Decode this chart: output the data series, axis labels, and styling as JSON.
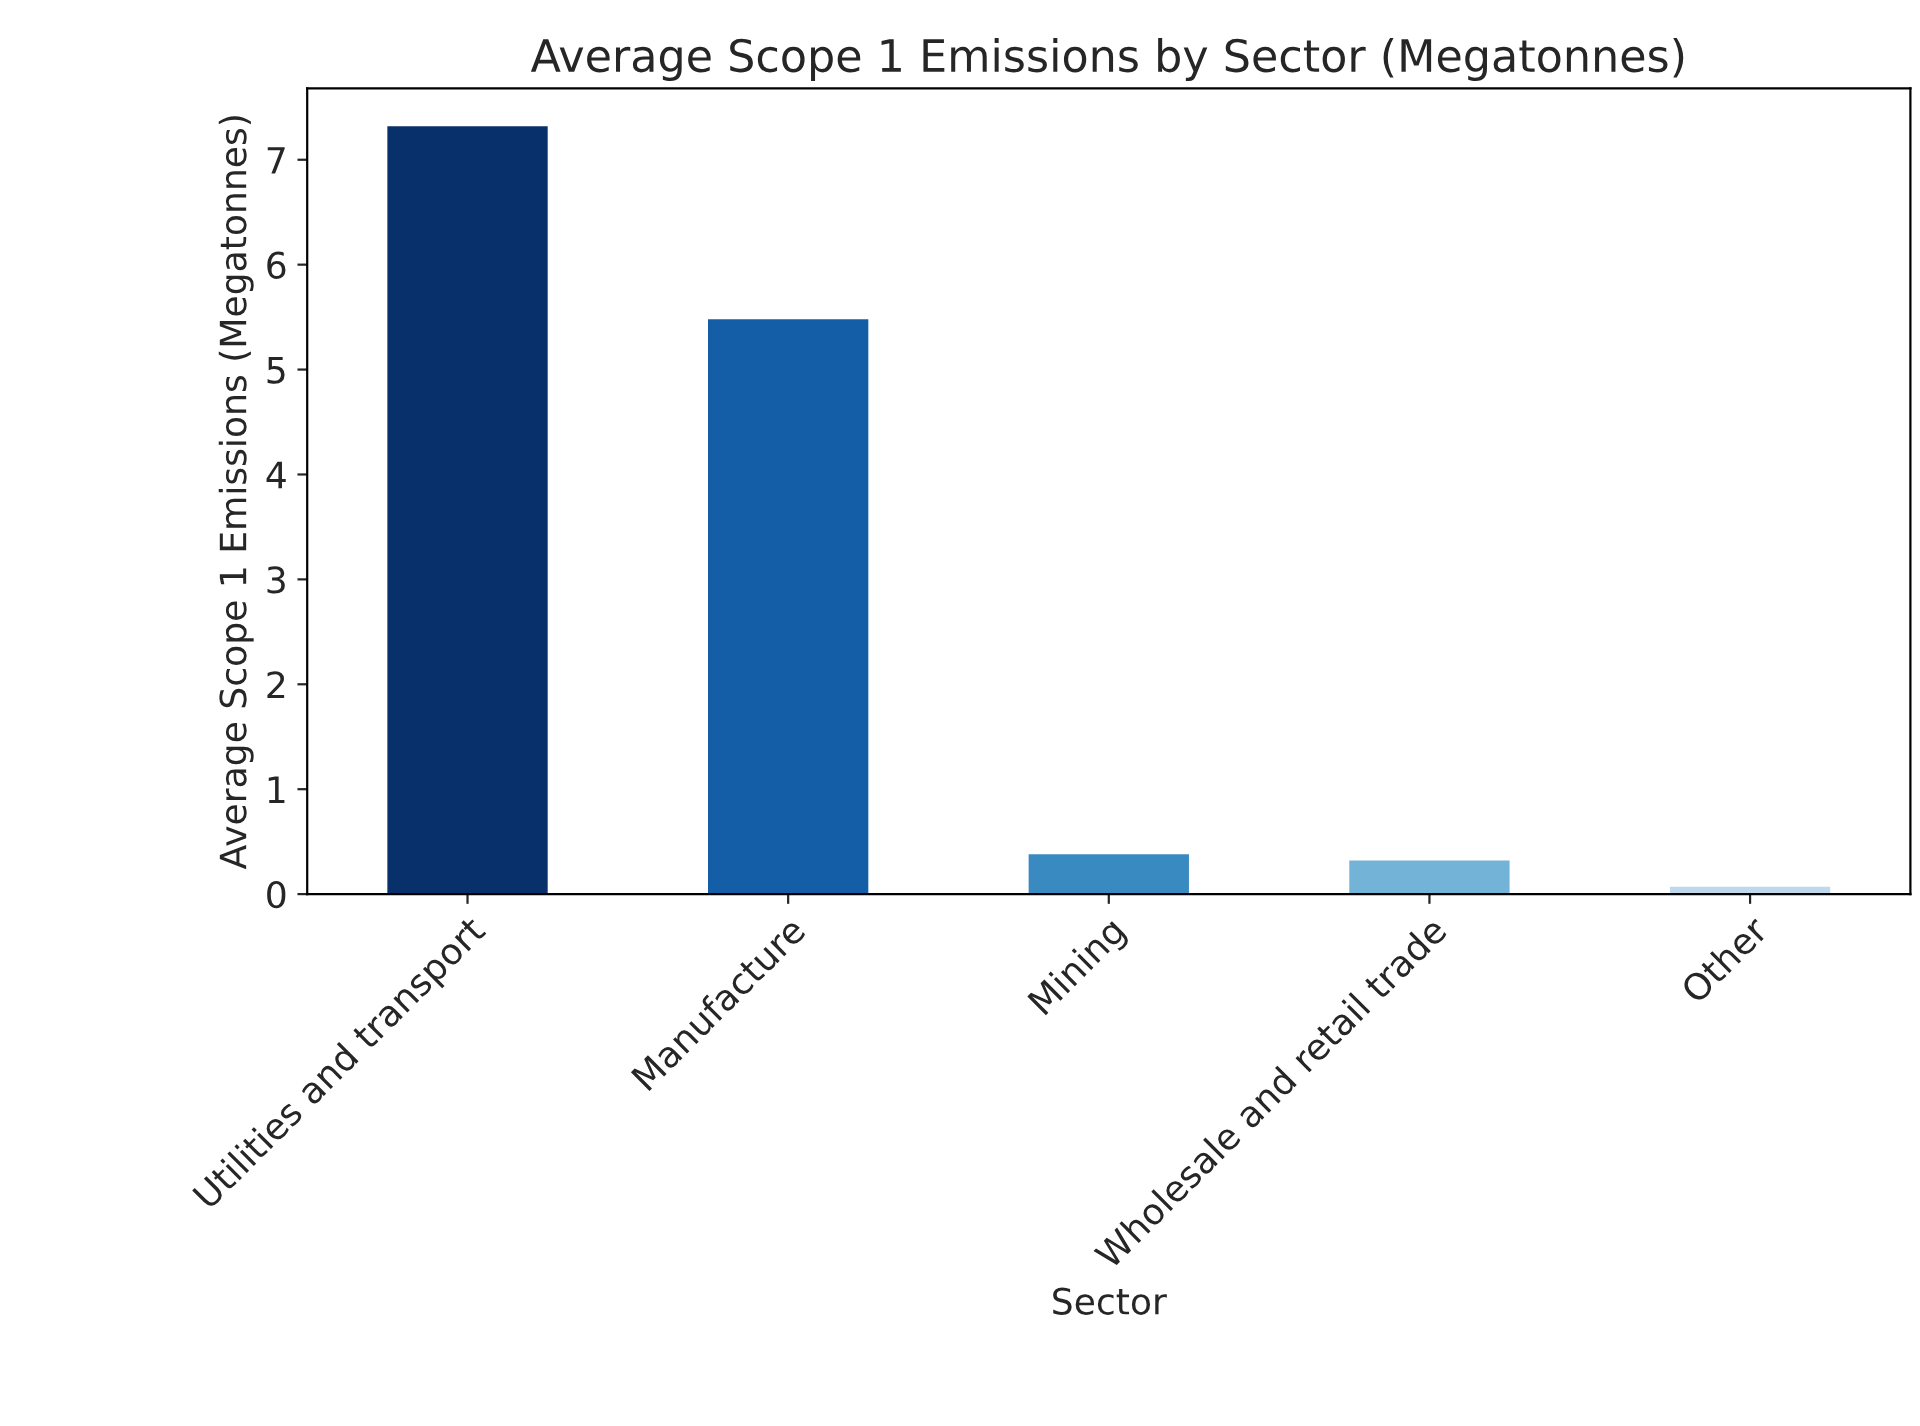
{
  "chart_data": {
    "type": "bar",
    "title": "Average Scope 1 Emissions by Sector (Megatonnes)",
    "xlabel": "Sector",
    "ylabel": "Average Scope 1 Emissions (Megatonnes)",
    "categories": [
      "Utilities and transport",
      "Manufacture",
      "Mining",
      "Wholesale and retail trade",
      "Other"
    ],
    "values": [
      7.32,
      5.48,
      0.38,
      0.32,
      0.07
    ],
    "colors": [
      "#08306b",
      "#145ea8",
      "#3a8ac2",
      "#74b3d8",
      "#bfd8ec"
    ],
    "ylim": [
      0,
      7.68
    ],
    "yticks": [
      0,
      1,
      2,
      3,
      4,
      5,
      6,
      7
    ],
    "grid": false,
    "legend": false
  }
}
